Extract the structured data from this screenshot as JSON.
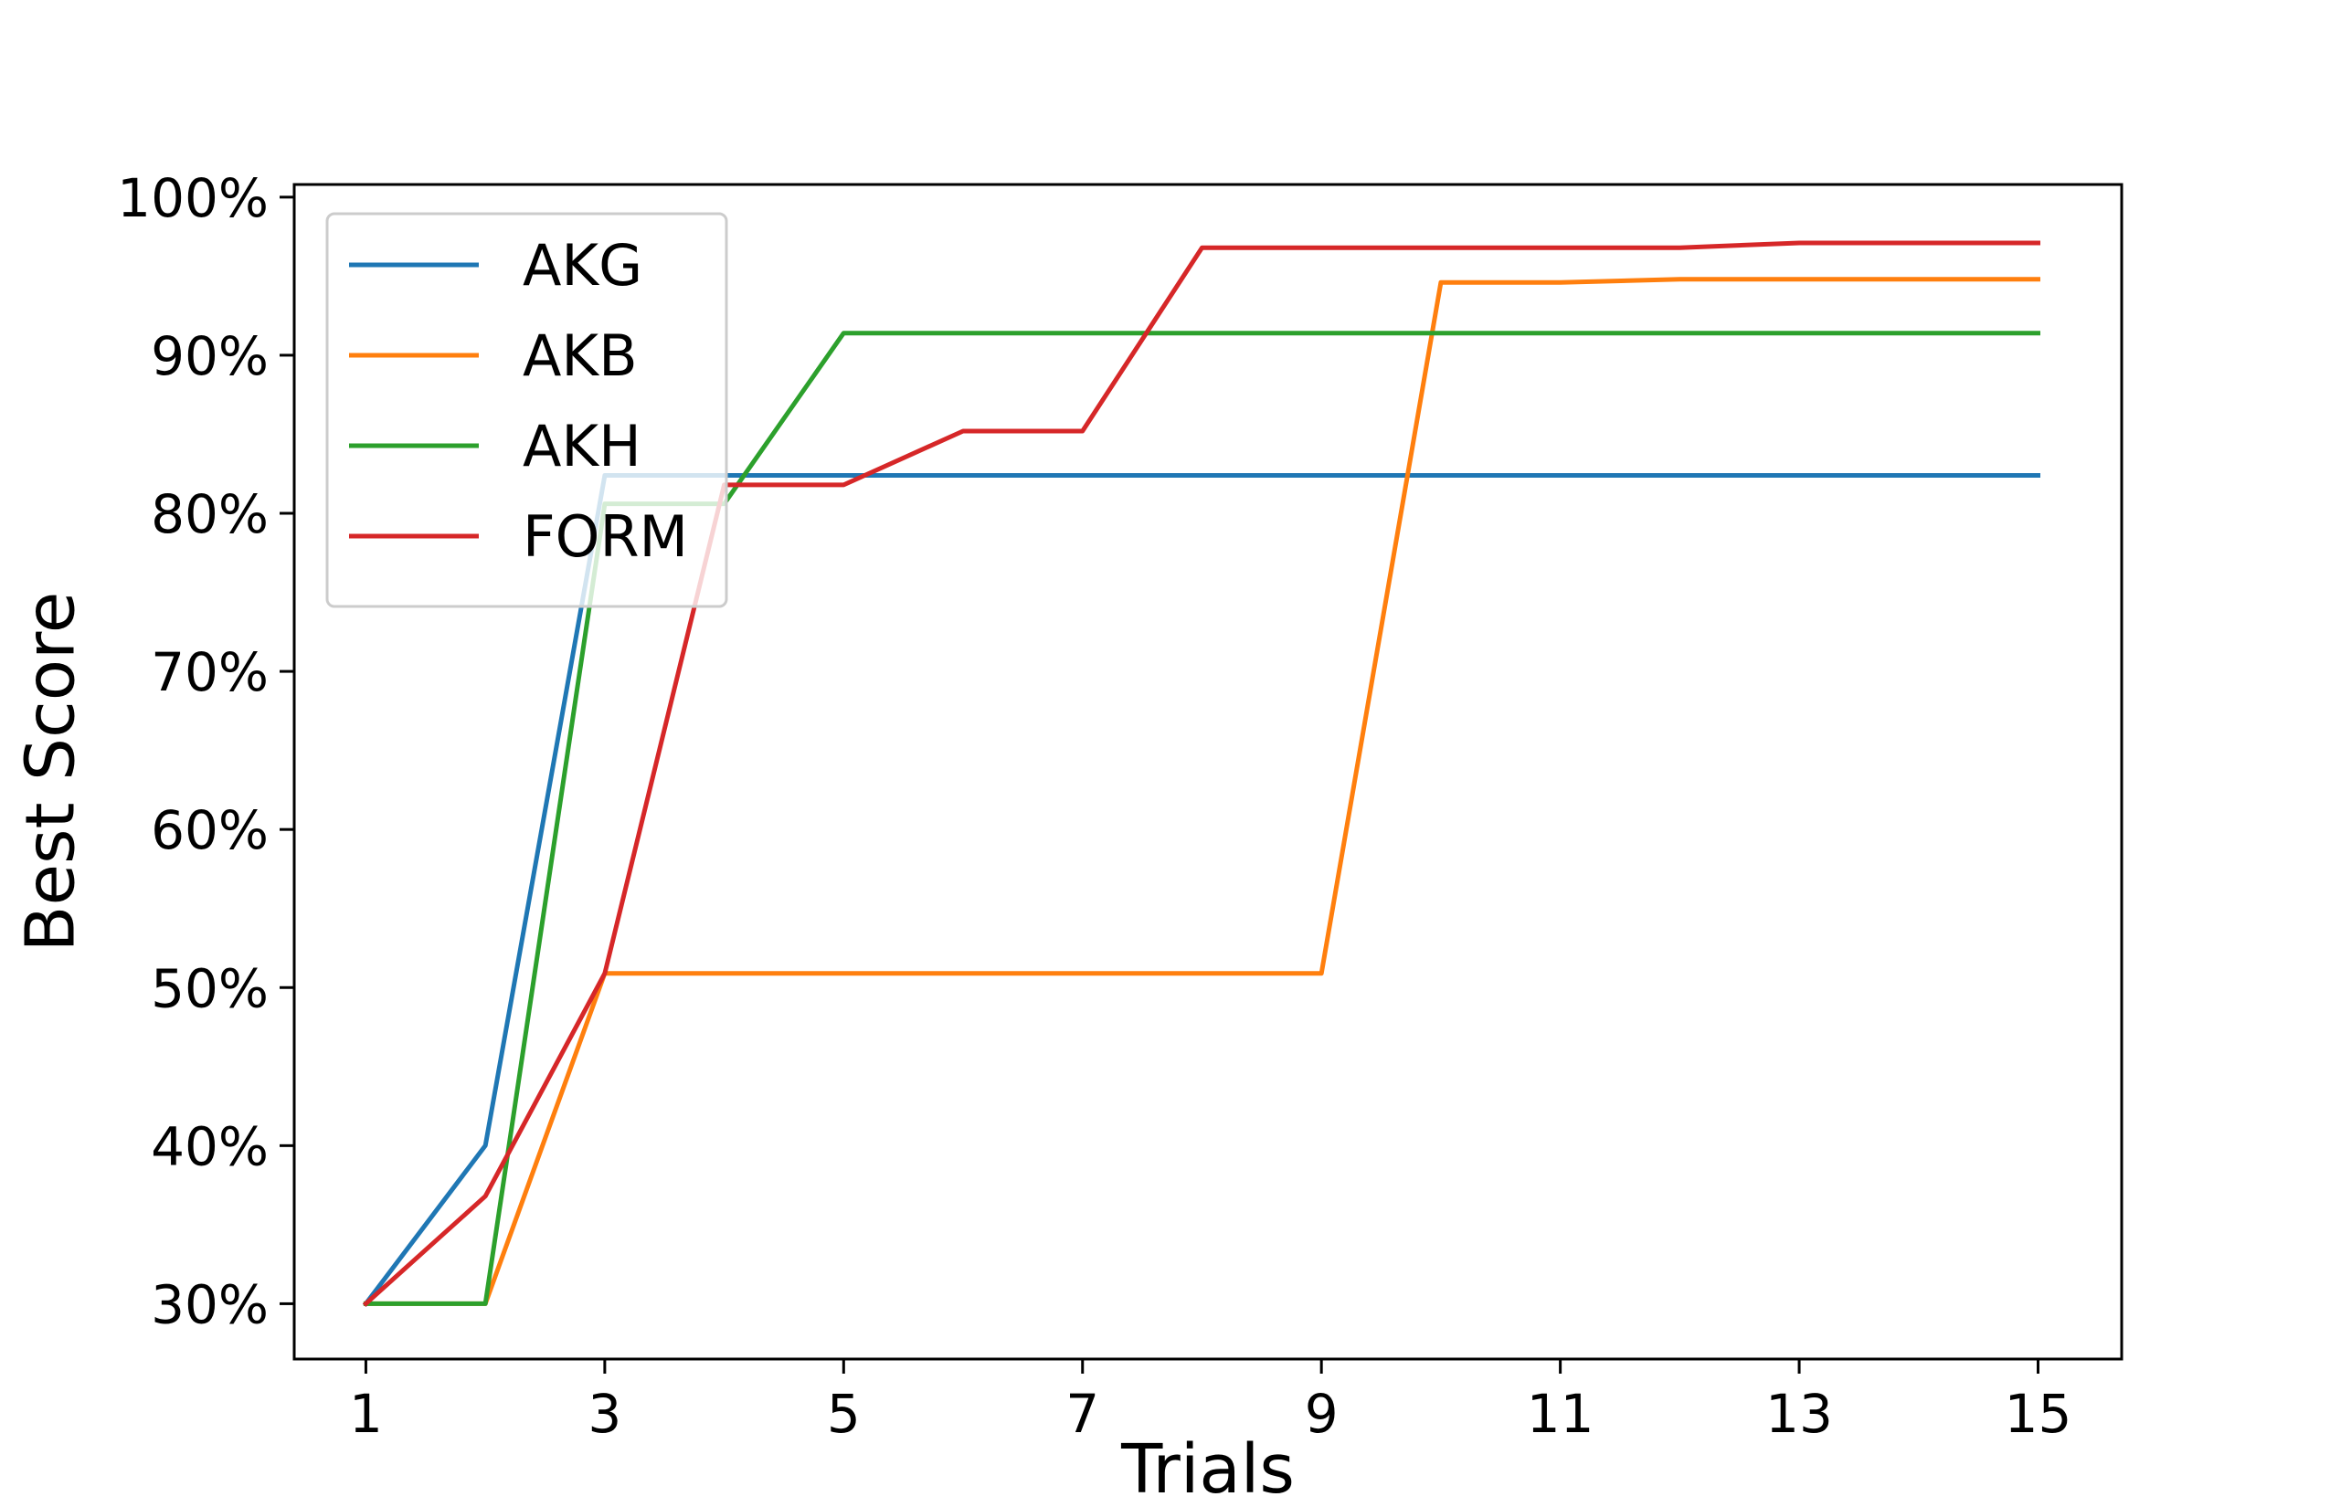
{
  "chart_data": {
    "type": "line",
    "title": "",
    "xlabel": "Trials",
    "ylabel": "Best Score",
    "x": [
      1,
      2,
      3,
      4,
      5,
      6,
      7,
      8,
      9,
      10,
      11,
      12,
      13,
      14,
      15
    ],
    "xlim": [
      0.4,
      15.7
    ],
    "ylim": [
      26.5,
      100.8
    ],
    "xticks": [
      1,
      3,
      5,
      7,
      9,
      11,
      13,
      15
    ],
    "xtick_labels": [
      "1",
      "3",
      "5",
      "7",
      "9",
      "11",
      "13",
      "15"
    ],
    "yticks": [
      30,
      40,
      50,
      60,
      70,
      80,
      90,
      100
    ],
    "ytick_labels": [
      "30%",
      "40%",
      "50%",
      "60%",
      "70%",
      "80%",
      "90%",
      "100%"
    ],
    "grid": false,
    "legend_position": "top-left",
    "series": [
      {
        "name": "AKG",
        "color": "#1f77b4",
        "values": [
          30.0,
          40.0,
          82.4,
          82.4,
          82.4,
          82.4,
          82.4,
          82.4,
          82.4,
          82.4,
          82.4,
          82.4,
          82.4,
          82.4,
          82.4
        ]
      },
      {
        "name": "AKB",
        "color": "#ff7f0e",
        "values": [
          30.0,
          30.0,
          50.9,
          50.9,
          50.9,
          50.9,
          50.9,
          50.9,
          50.9,
          94.6,
          94.6,
          94.8,
          94.8,
          94.8,
          94.8
        ]
      },
      {
        "name": "AKH",
        "color": "#2ca02c",
        "values": [
          30.0,
          30.0,
          80.6,
          80.6,
          91.4,
          91.4,
          91.4,
          91.4,
          91.4,
          91.4,
          91.4,
          91.4,
          91.4,
          91.4,
          91.4
        ]
      },
      {
        "name": "FORM",
        "color": "#d62728",
        "values": [
          30.0,
          36.8,
          50.9,
          81.8,
          81.8,
          85.2,
          85.2,
          96.8,
          96.8,
          96.8,
          96.8,
          96.8,
          97.1,
          97.1,
          97.1
        ]
      }
    ]
  }
}
